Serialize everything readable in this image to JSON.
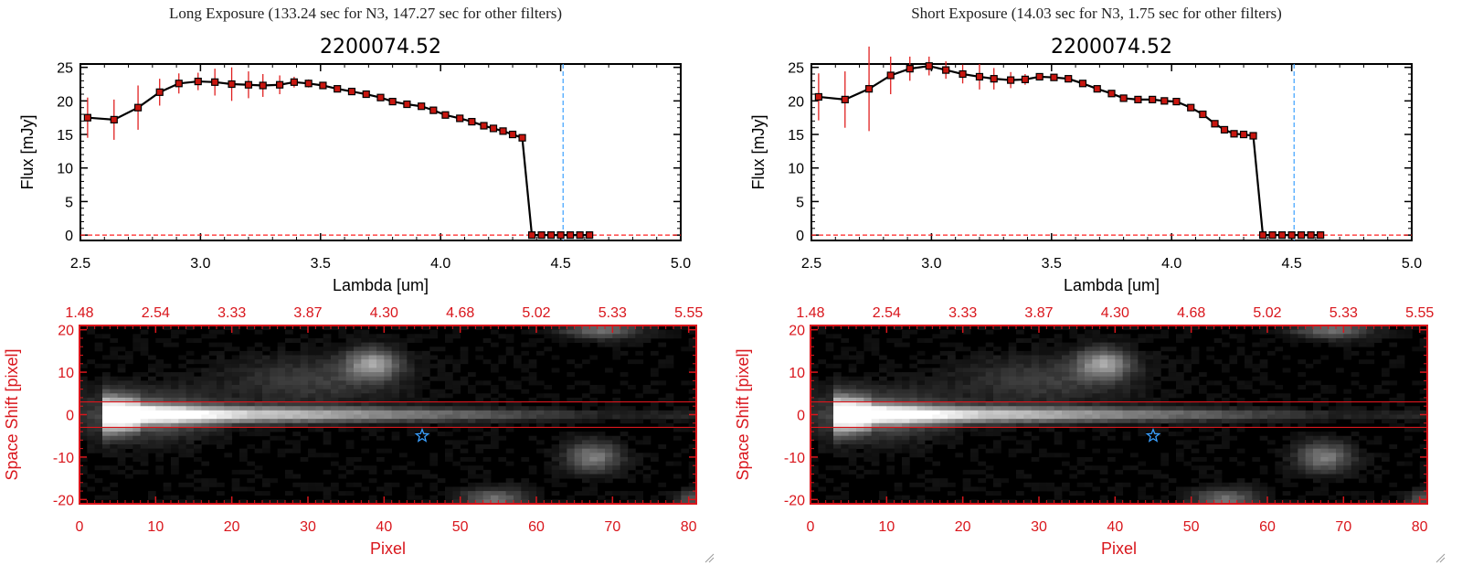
{
  "colors": {
    "axis_red": "#d9161c",
    "line": "#000000",
    "marker": "#c8160f",
    "errbar": "#e02020",
    "dash_blue": "#3aa0ff",
    "dash_red": "#ff2020"
  },
  "panels": [
    {
      "exposure_title": "Long Exposure (133.24 sec for N3, 147.27 sec for other filters)",
      "object_id": "2200074.52"
    },
    {
      "exposure_title": "Short Exposure (14.03 sec for N3, 1.75 sec for other filters)",
      "object_id": "2200074.52"
    }
  ],
  "chart_data": [
    {
      "type": "line",
      "title": "2200074.52",
      "xlabel": "Lambda [um]",
      "ylabel": "Flux [mJy]",
      "xlim": [
        2.5,
        5.0
      ],
      "ylim": [
        -0.8,
        25.5
      ],
      "xticks": [
        "2.5",
        "3.0",
        "3.5",
        "4.0",
        "4.5",
        "5.0"
      ],
      "yticks": [
        "0",
        "5",
        "10",
        "15",
        "20",
        "25"
      ],
      "vline_x": 4.51,
      "x": [
        2.53,
        2.64,
        2.74,
        2.83,
        2.91,
        2.99,
        3.06,
        3.13,
        3.2,
        3.26,
        3.33,
        3.39,
        3.45,
        3.51,
        3.57,
        3.63,
        3.69,
        3.75,
        3.8,
        3.86,
        3.92,
        3.97,
        4.02,
        4.08,
        4.13,
        4.18,
        4.22,
        4.26,
        4.3,
        4.34,
        4.38,
        4.42,
        4.46,
        4.5,
        4.54,
        4.58,
        4.62
      ],
      "y": [
        17.5,
        17.2,
        19.0,
        21.3,
        22.6,
        22.9,
        22.8,
        22.5,
        22.4,
        22.3,
        22.4,
        22.8,
        22.6,
        22.3,
        21.8,
        21.4,
        21.0,
        20.5,
        19.9,
        19.5,
        19.2,
        18.6,
        17.9,
        17.4,
        16.9,
        16.3,
        15.9,
        15.5,
        15.0,
        14.5,
        0,
        0,
        0,
        0,
        0,
        0,
        0
      ],
      "yerr": [
        3.0,
        3.0,
        3.3,
        2.0,
        1.5,
        1.3,
        2.0,
        2.5,
        2.0,
        1.7,
        1.4,
        0.8,
        0.6,
        0.5,
        0.5,
        0.4,
        0.4,
        0.4,
        0.4,
        0.4,
        0.4,
        0.4,
        0.4,
        0.4,
        0.4,
        0.4,
        0.4,
        0.4,
        0.4,
        0.4,
        0,
        0,
        0,
        0,
        0,
        0,
        0
      ]
    },
    {
      "type": "line",
      "title": "2200074.52",
      "xlabel": "Lambda [um]",
      "ylabel": "Flux [mJy]",
      "xlim": [
        2.5,
        5.0
      ],
      "ylim": [
        -0.8,
        25.5
      ],
      "xticks": [
        "2.5",
        "3.0",
        "3.5",
        "4.0",
        "4.5",
        "5.0"
      ],
      "yticks": [
        "0",
        "5",
        "10",
        "15",
        "20",
        "25"
      ],
      "vline_x": 4.51,
      "x": [
        2.53,
        2.64,
        2.74,
        2.83,
        2.91,
        2.99,
        3.06,
        3.13,
        3.2,
        3.26,
        3.33,
        3.39,
        3.45,
        3.51,
        3.57,
        3.63,
        3.69,
        3.75,
        3.8,
        3.86,
        3.92,
        3.97,
        4.02,
        4.08,
        4.13,
        4.18,
        4.22,
        4.26,
        4.3,
        4.34,
        4.38,
        4.42,
        4.46,
        4.5,
        4.54,
        4.58,
        4.62
      ],
      "y": [
        20.6,
        20.2,
        21.8,
        23.8,
        24.8,
        25.2,
        24.6,
        24.0,
        23.6,
        23.3,
        23.1,
        23.2,
        23.6,
        23.5,
        23.3,
        22.6,
        21.8,
        21.1,
        20.4,
        20.2,
        20.2,
        20.0,
        19.9,
        19.0,
        18.0,
        16.6,
        15.7,
        15.1,
        15.0,
        14.8,
        0,
        0,
        0,
        0,
        0,
        0,
        0
      ],
      "yerr": [
        3.5,
        4.2,
        6.3,
        2.8,
        1.8,
        1.4,
        1.3,
        1.4,
        1.9,
        1.6,
        1.2,
        0.8,
        0.5,
        0.5,
        0.4,
        0.4,
        0.4,
        0.4,
        0.4,
        0.4,
        0.4,
        0.4,
        0.4,
        0.4,
        0.4,
        0.4,
        0.4,
        0.4,
        0.4,
        0.4,
        0,
        0,
        0,
        0,
        0,
        0,
        0
      ]
    },
    {
      "type": "heatmap",
      "xlabel": "Pixel",
      "ylabel": "Space Shift [pixel]",
      "xlim": [
        0,
        81
      ],
      "ylim": [
        -21,
        21
      ],
      "xticks": [
        "0",
        "10",
        "20",
        "30",
        "40",
        "50",
        "60",
        "70",
        "80"
      ],
      "yticks": [
        "-20",
        "-10",
        "0",
        "10",
        "20"
      ],
      "top_axis_ticks": [
        "1.48",
        "2.54",
        "3.33",
        "3.87",
        "4.30",
        "4.68",
        "5.02",
        "5.33",
        "5.55"
      ],
      "extraction_aperture": [
        -3,
        3
      ],
      "star_position": [
        45,
        -5
      ]
    },
    {
      "type": "heatmap",
      "xlabel": "Pixel",
      "ylabel": "Space Shift [pixel]",
      "xlim": [
        0,
        81
      ],
      "ylim": [
        -21,
        21
      ],
      "xticks": [
        "0",
        "10",
        "20",
        "30",
        "40",
        "50",
        "60",
        "70",
        "80"
      ],
      "yticks": [
        "-20",
        "-10",
        "0",
        "10",
        "20"
      ],
      "top_axis_ticks": [
        "1.48",
        "2.54",
        "3.33",
        "3.87",
        "4.30",
        "4.68",
        "5.02",
        "5.33",
        "5.55"
      ],
      "extraction_aperture": [
        -3,
        3
      ],
      "star_position": [
        45,
        -5
      ]
    }
  ]
}
